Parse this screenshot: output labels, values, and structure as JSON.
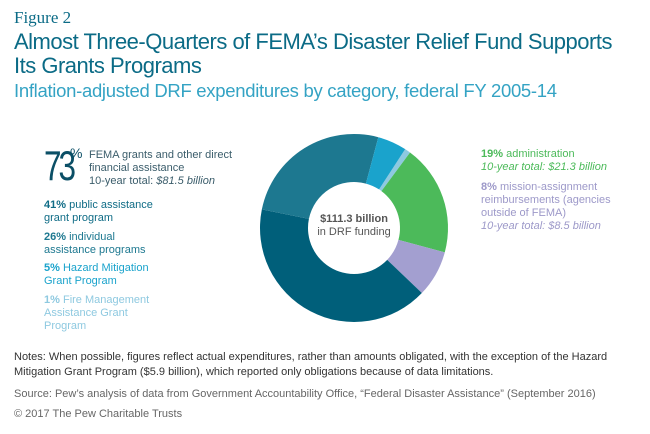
{
  "figure_label": "Figure 2",
  "chart_data": {
    "type": "pie",
    "title": "Almost Three-Quarters of FEMA’s Disaster Relief Fund Supports Its Grants Programs",
    "subtitle": "Inflation-adjusted DRF expenditures by category, federal FY 2005-14",
    "center_label": {
      "value": "$111.3 billion",
      "text": "in DRF funding"
    },
    "slices": [
      {
        "name": "Fire Management Assistance Grant Program",
        "pct": "1%",
        "value": 1,
        "color": "#8ec9e0",
        "label": "Fire Management Assistance Grant Program"
      },
      {
        "name": "administration",
        "pct": "19%",
        "value": 19,
        "color": "#4cba5a",
        "label": "administration",
        "total": "10-year total: $21.3 billion"
      },
      {
        "name": "mission-assignment reimbursements",
        "pct": "8%",
        "value": 8,
        "color": "#a39fd0",
        "label": "mission-assignment reimbursements (agencies outside of FEMA)",
        "total": "10-year total: $8.5 billion"
      },
      {
        "name": "public assistance grant program",
        "pct": "41%",
        "value": 41,
        "color": "#005f7a",
        "label": "public assistance grant program"
      },
      {
        "name": "individual assistance programs",
        "pct": "26%",
        "value": 26,
        "color": "#1d7890",
        "label": "individual assistance programs"
      },
      {
        "name": "Hazard Mitigation Grant Program",
        "pct": "5%",
        "value": 5,
        "color": "#1aa3cc",
        "label": "Hazard Mitigation Grant Program"
      }
    ],
    "group": {
      "pct_number": "73",
      "pct_sign": "%",
      "label": "FEMA grants and other direct financial assistance",
      "total_prefix": "10-year total: ",
      "total_value": "$81.5 billion"
    }
  },
  "notes": "Notes: When possible, figures reflect actual expenditures, rather than amounts obligated, with the exception of the Hazard Mitigation Grant Program ($5.9 billion), which reported only obligations because of data limitations.",
  "source": "Source: Pew’s analysis of data from Government Accountability Office, “Federal Disaster Assistance” (September 2016)",
  "copyright": "© 2017 The Pew Charitable Trusts"
}
